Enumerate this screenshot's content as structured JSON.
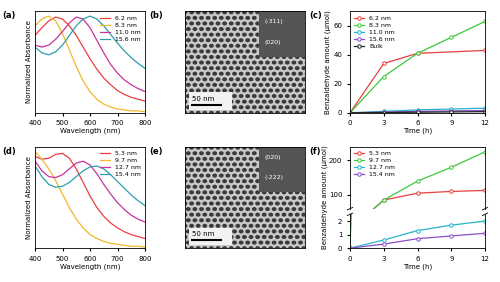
{
  "chart_data": [
    {
      "label": "(a)",
      "type": "line",
      "xlabel": "Wavelength (nm)",
      "ylabel": "Normalized Absorbance",
      "x": [
        400,
        425,
        450,
        475,
        500,
        525,
        550,
        575,
        600,
        625,
        650,
        675,
        700,
        725,
        750,
        775,
        800
      ],
      "xlim": [
        400,
        800
      ],
      "xticks": [
        400,
        500,
        600,
        700,
        800
      ],
      "ylim": [
        0,
        1.05
      ],
      "tick_labels": "x",
      "legend": "upper right",
      "series": [
        {
          "name": "6.2 nm",
          "color": "#e8413c",
          "line_style": "solid",
          "values": [
            0.8,
            0.88,
            0.95,
            0.99,
            0.97,
            0.9,
            0.8,
            0.68,
            0.56,
            0.45,
            0.36,
            0.29,
            0.23,
            0.19,
            0.16,
            0.14,
            0.12
          ]
        },
        {
          "name": "8.3 nm",
          "color": "#f2b72a",
          "line_style": "solid",
          "values": [
            0.9,
            0.97,
            1.0,
            0.95,
            0.82,
            0.65,
            0.48,
            0.33,
            0.22,
            0.14,
            0.09,
            0.06,
            0.04,
            0.03,
            0.02,
            0.02,
            0.01
          ]
        },
        {
          "name": "11.0 nm",
          "color": "#c8329a",
          "line_style": "solid",
          "values": [
            0.7,
            0.68,
            0.7,
            0.76,
            0.84,
            0.93,
            0.99,
            0.97,
            0.88,
            0.75,
            0.62,
            0.5,
            0.41,
            0.34,
            0.29,
            0.25,
            0.22
          ]
        },
        {
          "name": "15.6 nm",
          "color": "#2a9fb0",
          "line_style": "solid",
          "values": [
            0.68,
            0.62,
            0.6,
            0.63,
            0.7,
            0.8,
            0.9,
            0.97,
            1.0,
            0.97,
            0.9,
            0.81,
            0.72,
            0.64,
            0.57,
            0.51,
            0.46
          ]
        }
      ]
    },
    {
      "label": "(b)",
      "type": "image",
      "scale_bar": "50 nm",
      "planes": [
        "(-311)",
        "(020)"
      ]
    },
    {
      "label": "(c)",
      "type": "line",
      "xlabel": "Time (h)",
      "ylabel": "Benzaldehyde amount (μmol)",
      "xlim": [
        0,
        12
      ],
      "xticks": [
        0,
        3,
        6,
        9,
        12
      ],
      "ylim": [
        0,
        70
      ],
      "yticks": [
        0,
        20,
        40,
        60
      ],
      "legend": "upper left",
      "series": [
        {
          "name": "6.2 nm",
          "color": "#e8413c",
          "marker": "o",
          "line_style": "solid",
          "x": [
            0,
            3,
            6,
            12
          ],
          "values": [
            0,
            34,
            41,
            43
          ]
        },
        {
          "name": "8.3 nm",
          "color": "#3cc83c",
          "marker": "o",
          "line_style": "solid",
          "x": [
            0,
            3,
            6,
            9,
            12
          ],
          "values": [
            0,
            25,
            41,
            52,
            63
          ]
        },
        {
          "name": "11.0 nm",
          "color": "#26b5c8",
          "marker": "o",
          "line_style": "solid",
          "x": [
            0,
            3,
            6,
            9,
            12
          ],
          "values": [
            0,
            1.0,
            2.0,
            2.6,
            3.2
          ]
        },
        {
          "name": "15.6 nm",
          "color": "#8a4fc8",
          "marker": "o",
          "line_style": "solid",
          "x": [
            0,
            3,
            6,
            9,
            12
          ],
          "values": [
            0,
            0.5,
            1.0,
            1.3,
            1.6
          ]
        },
        {
          "name": "Bulk",
          "color": "#222222",
          "marker": "o",
          "line_style": "solid",
          "x": [
            0,
            3,
            6,
            9,
            12
          ],
          "values": [
            0,
            0.2,
            0.4,
            0.6,
            0.8
          ]
        }
      ]
    },
    {
      "label": "(d)",
      "type": "line",
      "xlabel": "Wavelength (nm)",
      "ylabel": "Normalized Absorbance",
      "x": [
        400,
        425,
        450,
        475,
        500,
        525,
        550,
        575,
        600,
        625,
        650,
        675,
        700,
        725,
        750,
        775,
        800
      ],
      "xlim": [
        400,
        800
      ],
      "xticks": [
        400,
        500,
        600,
        700,
        800
      ],
      "ylim": [
        0,
        1.05
      ],
      "tick_labels": "x",
      "legend": "upper right",
      "series": [
        {
          "name": "5.3 nm",
          "color": "#e8413c",
          "line_style": "solid",
          "values": [
            0.95,
            0.92,
            0.93,
            0.97,
            0.98,
            0.93,
            0.82,
            0.68,
            0.54,
            0.42,
            0.33,
            0.26,
            0.21,
            0.17,
            0.14,
            0.12,
            0.1
          ]
        },
        {
          "name": "9.7 nm",
          "color": "#f2b72a",
          "line_style": "solid",
          "values": [
            1.0,
            0.92,
            0.82,
            0.7,
            0.56,
            0.42,
            0.3,
            0.21,
            0.14,
            0.1,
            0.07,
            0.05,
            0.04,
            0.03,
            0.02,
            0.02,
            0.01
          ]
        },
        {
          "name": "12.7 nm",
          "color": "#c8329a",
          "line_style": "solid",
          "values": [
            0.9,
            0.8,
            0.74,
            0.73,
            0.76,
            0.82,
            0.88,
            0.9,
            0.86,
            0.77,
            0.66,
            0.56,
            0.47,
            0.4,
            0.34,
            0.3,
            0.27
          ]
        },
        {
          "name": "15.4 nm",
          "color": "#2a9fb0",
          "line_style": "solid",
          "values": [
            0.85,
            0.74,
            0.66,
            0.63,
            0.64,
            0.68,
            0.74,
            0.8,
            0.84,
            0.85,
            0.82,
            0.76,
            0.69,
            0.62,
            0.55,
            0.49,
            0.44
          ]
        }
      ]
    },
    {
      "label": "(e)",
      "type": "image",
      "scale_bar": "50 nm",
      "planes": [
        "(020)",
        "(-222)"
      ]
    },
    {
      "label": "(f)",
      "type": "broken_line",
      "xlabel": "Time (h)",
      "ylabel": "Benzaldehyde amount (μmol)",
      "xlim": [
        0,
        12
      ],
      "xticks": [
        0,
        3,
        6,
        9,
        12
      ],
      "axes": [
        {
          "ylim": [
            60,
            240
          ],
          "yticks": [
            100,
            200
          ]
        },
        {
          "ylim": [
            0,
            2.5
          ],
          "yticks": [
            0,
            1,
            2
          ]
        }
      ],
      "legend": "upper left",
      "series": [
        {
          "name": "5.3 nm",
          "color": "#e8413c",
          "marker": "o",
          "line_style": "solid",
          "x": [
            0,
            3,
            6,
            9,
            12
          ],
          "values": [
            0,
            85,
            105,
            110,
            113
          ]
        },
        {
          "name": "9.7 nm",
          "color": "#3cc83c",
          "marker": "o",
          "line_style": "solid",
          "x": [
            0,
            3,
            6,
            9,
            12
          ],
          "values": [
            0,
            85,
            140,
            180,
            225
          ]
        },
        {
          "name": "12.7 nm",
          "color": "#26b5c8",
          "marker": "o",
          "line_style": "solid",
          "x": [
            0,
            3,
            6,
            9,
            12
          ],
          "values": [
            0,
            0.6,
            1.3,
            1.7,
            2.0
          ]
        },
        {
          "name": "15.4 nm",
          "color": "#8a4fc8",
          "marker": "o",
          "line_style": "solid",
          "x": [
            0,
            3,
            6,
            9,
            12
          ],
          "values": [
            0,
            0.3,
            0.7,
            0.9,
            1.1
          ]
        }
      ]
    }
  ]
}
